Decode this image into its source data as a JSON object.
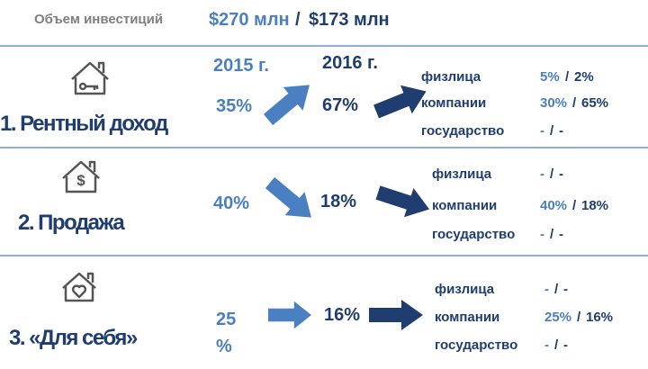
{
  "header": {
    "label": "Объем инвестиций",
    "value_2015": "$270 млн",
    "sep": "/",
    "value_2016": "$173 млн"
  },
  "years": {
    "y2015": "2015 г.",
    "y2016": "2016 г."
  },
  "sections": [
    {
      "title": "1. Рентный доход",
      "v2015": "35%",
      "v2016": "67%",
      "rows": [
        {
          "label": "физлица",
          "a": "5%",
          "sep": "/",
          "b": "2%"
        },
        {
          "label": "компании",
          "a": "30%",
          "sep": "/",
          "b": "65%"
        },
        {
          "label": "государство",
          "a": "-",
          "sep": "/",
          "b": "-"
        }
      ]
    },
    {
      "title": "2. Продажа",
      "v2015": "40%",
      "v2016": "18%",
      "rows": [
        {
          "label": "физлица",
          "a": "-",
          "sep": "/",
          "b": "-"
        },
        {
          "label": "компании",
          "a": "40%",
          "sep": "/",
          "b": "18%"
        },
        {
          "label": "государство",
          "a": "-",
          "sep": "/",
          "b": "-"
        }
      ]
    },
    {
      "title": "3. «Для себя»",
      "v2015": "25 %",
      "v2016": "16%",
      "rows": [
        {
          "label": "физлица",
          "a": "-",
          "sep": "/",
          "b": "-"
        },
        {
          "label": "компании",
          "a": "25%",
          "sep": "/",
          "b": "16%"
        },
        {
          "label": "государство",
          "a": "-",
          "sep": "/",
          "b": "-"
        }
      ]
    }
  ]
}
